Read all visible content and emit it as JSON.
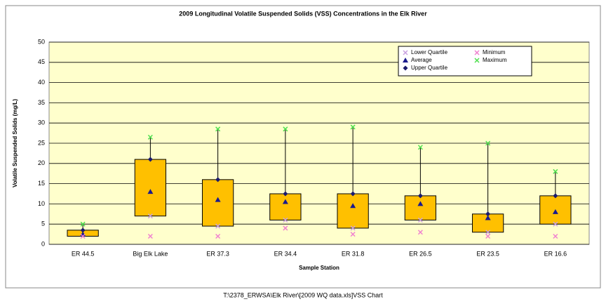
{
  "chart_data": {
    "type": "box",
    "title": "2009 Longitudinal Volatile Suspended Solids (VSS) Concentrations in the Elk River",
    "x_label": "Sample Station",
    "y_label": "Volatile Suspended Solids (mg/L)",
    "footer": "T:\\2378_ERWSA\\Elk River\\[2009 WQ data.xls]VSS Chart",
    "categories": [
      "ER 44.5",
      "Big Elk Lake",
      "ER 37.3",
      "ER 34.4",
      "ER 31.8",
      "ER 26.5",
      "ER 23.5",
      "ER 16.6"
    ],
    "series": [
      {
        "name": "Lower Quartile",
        "color": "#c8a0e0",
        "marker": "x",
        "values": [
          2,
          7,
          4.5,
          6,
          4,
          6,
          3,
          5
        ]
      },
      {
        "name": "Average",
        "color": "#1a1a8c",
        "marker": "triangle",
        "values": [
          2.5,
          13,
          11,
          10.5,
          9.5,
          10,
          6.5,
          8
        ]
      },
      {
        "name": "Upper Quartile",
        "color": "#1a1a6c",
        "marker": "diamond",
        "values": [
          3.5,
          21,
          16,
          12.5,
          12.5,
          12,
          7.5,
          12
        ]
      },
      {
        "name": "Minimum",
        "color": "#f080d0",
        "marker": "x",
        "values": [
          2,
          2,
          2,
          4,
          2.5,
          3,
          2,
          2
        ]
      },
      {
        "name": "Maximum",
        "color": "#50e050",
        "marker": "x",
        "values": [
          5,
          26.5,
          28.5,
          28.5,
          29,
          24,
          25,
          18
        ]
      }
    ],
    "box_color": "#ffc000",
    "plot_background": "#ffffcc",
    "ylim": [
      0,
      50
    ],
    "yticks": [
      0,
      5,
      10,
      15,
      20,
      25,
      30,
      35,
      40,
      45,
      50
    ],
    "grid": true,
    "legend": "top-right"
  }
}
